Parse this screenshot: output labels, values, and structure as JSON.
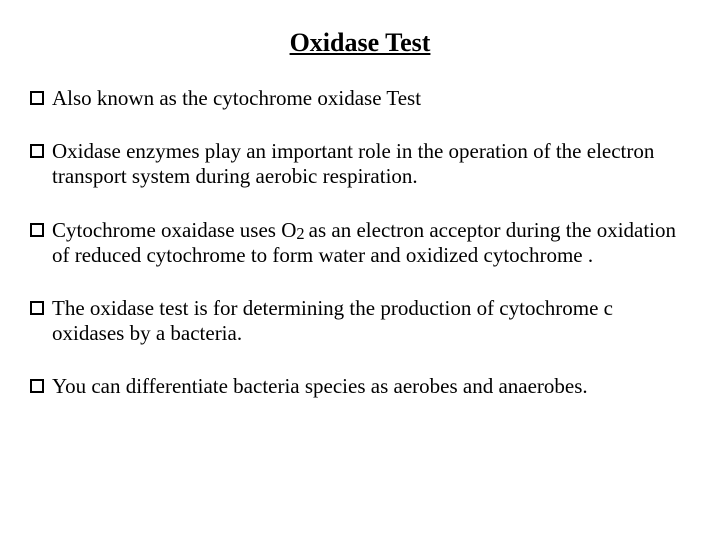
{
  "title": "Oxidase Test",
  "bullets": {
    "b0": "Also known as the cytochrome oxidase Test",
    "b1": "Oxidase enzymes play an important role in the operation of the electron transport system during aerobic respiration.",
    "b2_pre": "Cytochrome oxaidase uses O",
    "b2_sub": "2 ",
    "b2_post": "as an electron acceptor during the oxidation of reduced cytochrome to form water and oxidized cytochrome .",
    "b3": "The oxidase test is for determining the production of cytochrome c oxidases by a bacteria.",
    "b4": "You can differentiate bacteria species as aerobes and  anaerobes."
  },
  "styling": {
    "background_color": "#ffffff",
    "text_color": "#000000",
    "font_family": "Times New Roman",
    "title_fontsize": 26,
    "body_fontsize": 21,
    "bullet_box_size": 14,
    "bullet_box_border": "#000000"
  }
}
